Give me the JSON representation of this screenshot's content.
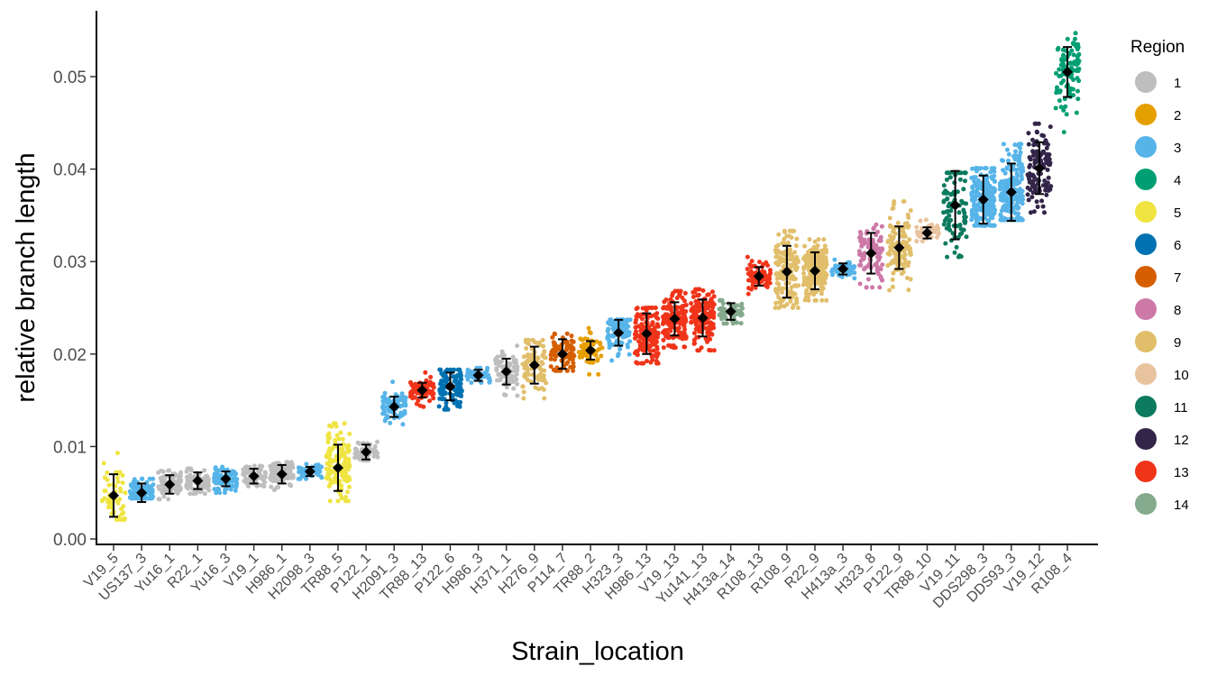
{
  "chart_data": {
    "type": "scatter",
    "subtype": "jitter with mean and standard-deviation error bars",
    "xlabel": "Strain_location",
    "ylabel": "relative branch length",
    "ylim": [
      0,
      0.057
    ],
    "yticks": [
      "0.00",
      "0.01",
      "0.02",
      "0.03",
      "0.04",
      "0.05"
    ],
    "grid": false,
    "legend_position": "right",
    "legend": {
      "title": "Region",
      "entries": [
        {
          "label": "1",
          "color": "#BEBEBE"
        },
        {
          "label": "2",
          "color": "#E69F00"
        },
        {
          "label": "3",
          "color": "#56B4E9"
        },
        {
          "label": "4",
          "color": "#009E73"
        },
        {
          "label": "5",
          "color": "#F0E442"
        },
        {
          "label": "6",
          "color": "#0072B2"
        },
        {
          "label": "7",
          "color": "#D55E00"
        },
        {
          "label": "8",
          "color": "#CC79A7"
        },
        {
          "label": "9",
          "color": "#E1BE6A"
        },
        {
          "label": "10",
          "color": "#E8C39E"
        },
        {
          "label": "11",
          "color": "#0B7A5E"
        },
        {
          "label": "12",
          "color": "#332549"
        },
        {
          "label": "13",
          "color": "#F0341A"
        },
        {
          "label": "14",
          "color": "#84A98C"
        }
      ]
    },
    "categories": [
      "V19_5",
      "US137_3",
      "Yu16_1",
      "R22_1",
      "Yu16_3",
      "V19_1",
      "H986_1",
      "H2098_3",
      "TR88_5",
      "P122_1",
      "H2091_3",
      "TR88_13",
      "P122_6",
      "H986_3",
      "H371_1",
      "H276_9",
      "P114_7",
      "TR88_2",
      "H323_3",
      "H986_13",
      "V19_13",
      "Yu141_13",
      "H413a_14",
      "R108_13",
      "R108_9",
      "R22_9",
      "H413a_3",
      "H323_8",
      "P122_9",
      "TR88_10",
      "V19_11",
      "DDS298_3",
      "DDS93_3",
      "V19_12",
      "R108_4"
    ],
    "region": [
      5,
      3,
      1,
      1,
      3,
      1,
      1,
      3,
      5,
      1,
      3,
      13,
      6,
      3,
      1,
      9,
      7,
      2,
      3,
      13,
      13,
      13,
      14,
      13,
      9,
      9,
      3,
      8,
      9,
      10,
      11,
      3,
      3,
      12,
      4
    ],
    "mean": [
      0.0047,
      0.005,
      0.0059,
      0.0063,
      0.0065,
      0.0068,
      0.007,
      0.0073,
      0.0077,
      0.0094,
      0.0143,
      0.0161,
      0.0165,
      0.0177,
      0.0181,
      0.0188,
      0.02,
      0.0204,
      0.0223,
      0.0222,
      0.0238,
      0.0239,
      0.0246,
      0.0284,
      0.0289,
      0.029,
      0.0292,
      0.0309,
      0.0315,
      0.0331,
      0.0361,
      0.0367,
      0.0375,
      0.0401,
      0.0505
    ],
    "sd": [
      0.0023,
      0.001,
      0.001,
      0.0009,
      0.0008,
      0.0008,
      0.001,
      0.0005,
      0.0025,
      0.0008,
      0.0011,
      0.0008,
      0.0015,
      0.0006,
      0.0014,
      0.002,
      0.0016,
      0.001,
      0.0014,
      0.0022,
      0.0018,
      0.002,
      0.0009,
      0.001,
      0.0028,
      0.002,
      0.0006,
      0.0022,
      0.0023,
      0.0006,
      0.0037,
      0.0026,
      0.0031,
      0.0028,
      0.0027
    ],
    "point_range": [
      [
        0.0021,
        0.0093
      ],
      [
        0.0044,
        0.0065
      ],
      [
        0.0043,
        0.0074
      ],
      [
        0.0049,
        0.0076
      ],
      [
        0.005,
        0.0078
      ],
      [
        0.0057,
        0.0079
      ],
      [
        0.0053,
        0.0083
      ],
      [
        0.0065,
        0.0081
      ],
      [
        0.0041,
        0.0125
      ],
      [
        0.0085,
        0.0105
      ],
      [
        0.0124,
        0.017
      ],
      [
        0.0143,
        0.018
      ],
      [
        0.014,
        0.0183
      ],
      [
        0.0169,
        0.0185
      ],
      [
        0.0155,
        0.0209
      ],
      [
        0.0152,
        0.0215
      ],
      [
        0.0182,
        0.0222
      ],
      [
        0.0178,
        0.0228
      ],
      [
        0.0193,
        0.0237
      ],
      [
        0.019,
        0.025
      ],
      [
        0.0207,
        0.0268
      ],
      [
        0.0204,
        0.027
      ],
      [
        0.0233,
        0.0258
      ],
      [
        0.0265,
        0.0305
      ],
      [
        0.025,
        0.0333
      ],
      [
        0.0258,
        0.0324
      ],
      [
        0.0282,
        0.0302
      ],
      [
        0.0272,
        0.034
      ],
      [
        0.0269,
        0.0365
      ],
      [
        0.0322,
        0.0345
      ],
      [
        0.0305,
        0.0396
      ],
      [
        0.0339,
        0.0401
      ],
      [
        0.0345,
        0.0427
      ],
      [
        0.0353,
        0.0449
      ],
      [
        0.044,
        0.0547
      ]
    ],
    "point_count": [
      60,
      110,
      80,
      80,
      90,
      70,
      100,
      60,
      150,
      50,
      80,
      80,
      110,
      50,
      70,
      90,
      80,
      60,
      90,
      150,
      160,
      150,
      60,
      70,
      150,
      200,
      60,
      100,
      120,
      40,
      90,
      200,
      200,
      120,
      90
    ]
  }
}
